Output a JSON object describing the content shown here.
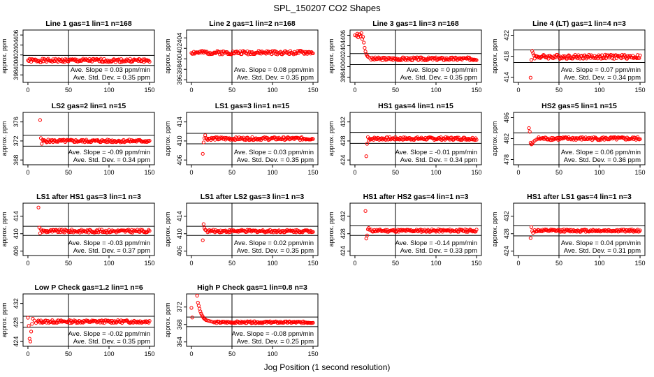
{
  "figure": {
    "title": "SPL_150207  CO2 Shapes",
    "xlabel": "Jog Position (1 second resolution)"
  },
  "chart_data": [
    {
      "type": "scatter",
      "title": "Line 1 gas=1 lin=1 n=168",
      "ylabel": "approx. ppm",
      "xlim": [
        0,
        150
      ],
      "ylim": [
        396.5,
        407
      ],
      "yticks": [
        398,
        400,
        402,
        404,
        406
      ],
      "xticks": [
        0,
        50,
        100,
        150
      ],
      "vline": 50,
      "hlines": [
        401.9,
        399.9
      ],
      "color": "#ff0000",
      "annotations": [
        "Ave. Slope =  0.03  ppm/min",
        "Ave. Std. Dev. =  0.35  ppm"
      ],
      "points": {
        "x_start": 0,
        "x_end": 150,
        "base": 400.9,
        "amp": 0.35,
        "seed": 1,
        "head": []
      }
    },
    {
      "type": "scatter",
      "title": "Line 2 gas=1 lin=2 n=168",
      "ylabel": "approx. ppm",
      "xlim": [
        0,
        150
      ],
      "ylim": [
        395.5,
        405.5
      ],
      "yticks": [
        396,
        398,
        400,
        402,
        404
      ],
      "xticks": [
        0,
        50,
        100,
        150
      ],
      "vline": 50,
      "hlines": [],
      "color": "#ff0000",
      "annotations": [
        "Ave. Slope =  0.08  ppm/min",
        "Ave. Std. Dev. =  0.35  ppm"
      ],
      "points": {
        "x_start": 0,
        "x_end": 150,
        "base": 401.2,
        "amp": 0.35,
        "seed": 2,
        "head": []
      }
    },
    {
      "type": "scatter",
      "title": "Line 3 gas=1 lin=3 n=168",
      "ylabel": "approx. ppm",
      "xlim": [
        0,
        150
      ],
      "ylim": [
        397,
        407
      ],
      "yticks": [
        398,
        400,
        402,
        404,
        406
      ],
      "xticks": [
        0,
        50,
        100,
        150
      ],
      "vline": 50,
      "hlines": [
        402.5,
        400.4
      ],
      "color": "#ff0000",
      "annotations": [
        "Ave. Slope =  0  ppm/min",
        "Ave. Std. Dev. =  0.35  ppm"
      ],
      "points": {
        "x_start": 20,
        "x_end": 150,
        "base": 401.5,
        "amp": 0.3,
        "seed": 3,
        "head": [
          [
            0,
            406.0
          ],
          [
            2,
            405.9
          ],
          [
            3,
            406.3
          ],
          [
            4,
            405.6
          ],
          [
            5,
            406.1
          ],
          [
            6,
            406.2
          ],
          [
            7,
            405.8
          ],
          [
            8,
            406.4
          ],
          [
            9,
            405.3
          ],
          [
            10,
            405.7
          ],
          [
            11,
            404.6
          ],
          [
            12,
            403.6
          ],
          [
            13,
            402.9
          ],
          [
            14,
            402.4
          ],
          [
            15,
            402.1
          ],
          [
            16,
            401.9
          ],
          [
            18,
            401.7
          ]
        ]
      }
    },
    {
      "type": "scatter",
      "title": "Line 4 (LT) gas=1 lin=4 n=3",
      "ylabel": "approx. ppm",
      "xlim": [
        0,
        150
      ],
      "ylim": [
        413,
        423
      ],
      "yticks": [
        414,
        418,
        422
      ],
      "xticks": [
        0,
        50,
        100,
        150
      ],
      "vline": 50,
      "hlines": [
        419.2,
        416.8
      ],
      "color": "#ff0000",
      "annotations": [
        "Ave. Slope =  0.07  ppm/min",
        "Ave. Std. Dev. =  0.34  ppm"
      ],
      "points": {
        "x_start": 20,
        "x_end": 150,
        "base": 417.9,
        "amp": 0.4,
        "seed": 4,
        "head": [
          [
            15,
            413.9
          ],
          [
            16,
            417.3
          ],
          [
            17,
            419.0
          ],
          [
            18,
            418.6
          ],
          [
            19,
            418.2
          ]
        ]
      }
    },
    {
      "type": "scatter",
      "title": "LS2 gas=2 lin=1 n=15",
      "ylabel": "approx. ppm",
      "xlim": [
        0,
        150
      ],
      "ylim": [
        367,
        378
      ],
      "yticks": [
        368,
        372,
        376
      ],
      "xticks": [
        0,
        50,
        100,
        150
      ],
      "vline": 50,
      "hlines": [
        373.2,
        370.9
      ],
      "color": "#ff0000",
      "annotations": [
        "Ave. Slope =  -0.09  ppm/min",
        "Ave. Std. Dev. =  0.34  ppm"
      ],
      "points": {
        "x_start": 18,
        "x_end": 150,
        "base": 372.0,
        "amp": 0.3,
        "seed": 5,
        "head": [
          [
            15,
            376.4
          ],
          [
            16,
            372.6
          ],
          [
            17,
            371.4
          ]
        ]
      }
    },
    {
      "type": "scatter",
      "title": "LS1 gas=3 lin=1 n=15",
      "ylabel": "approx. ppm",
      "xlim": [
        0,
        150
      ],
      "ylim": [
        405,
        416
      ],
      "yticks": [
        406,
        410,
        414
      ],
      "xticks": [
        0,
        50,
        100,
        150
      ],
      "vline": 50,
      "hlines": [
        411.6,
        409.4
      ],
      "color": "#ff0000",
      "annotations": [
        "Ave. Slope =  0.03  ppm/min",
        "Ave. Std. Dev. =  0.35  ppm"
      ],
      "points": {
        "x_start": 18,
        "x_end": 150,
        "base": 410.5,
        "amp": 0.3,
        "seed": 6,
        "head": [
          [
            14,
            407.3
          ],
          [
            15,
            409.7
          ],
          [
            16,
            410.6
          ],
          [
            17,
            411.2
          ]
        ]
      }
    },
    {
      "type": "scatter",
      "title": "HS1 gas=4 lin=1 n=15",
      "ylabel": "approx. ppm",
      "xlim": [
        0,
        150
      ],
      "ylim": [
        423,
        434
      ],
      "yticks": [
        424,
        428,
        432
      ],
      "xticks": [
        0,
        50,
        100,
        150
      ],
      "vline": 50,
      "hlines": [
        429.8,
        427.5
      ],
      "color": "#ff0000",
      "annotations": [
        "Ave. Slope =  -0.01  ppm/min",
        "Ave. Std. Dev. =  0.34  ppm"
      ],
      "points": {
        "x_start": 18,
        "x_end": 150,
        "base": 428.5,
        "amp": 0.3,
        "seed": 7,
        "head": [
          [
            14,
            424.8
          ],
          [
            15,
            427.4
          ],
          [
            16,
            428.8
          ],
          [
            17,
            428.1
          ]
        ]
      }
    },
    {
      "type": "scatter",
      "title": "HS2 gas=5 lin=1 n=15",
      "ylabel": "approx. ppm",
      "xlim": [
        0,
        150
      ],
      "ylim": [
        477,
        487
      ],
      "yticks": [
        478,
        482,
        486
      ],
      "xticks": [
        0,
        50,
        100,
        150
      ],
      "vline": 50,
      "hlines": [
        483.1,
        480.8
      ],
      "color": "#ff0000",
      "annotations": [
        "Ave. Slope =  0.06  ppm/min",
        "Ave. Std. Dev. =  0.36  ppm"
      ],
      "points": {
        "x_start": 24,
        "x_end": 150,
        "base": 482.0,
        "amp": 0.3,
        "seed": 8,
        "head": [
          [
            13,
            484.0
          ],
          [
            14,
            483.3
          ],
          [
            15,
            481.2
          ],
          [
            16,
            480.9
          ],
          [
            17,
            481.0
          ],
          [
            18,
            481.3
          ],
          [
            20,
            481.6
          ],
          [
            22,
            481.8
          ]
        ]
      }
    },
    {
      "type": "scatter",
      "title": "LS1 after HS1 gas=3 lin=1 n=3",
      "ylabel": "approx. ppm",
      "xlim": [
        0,
        150
      ],
      "ylim": [
        405,
        417
      ],
      "yticks": [
        406,
        410,
        414
      ],
      "xticks": [
        0,
        50,
        100,
        150
      ],
      "vline": 50,
      "hlines": [
        411.7,
        409.6
      ],
      "color": "#ff0000",
      "annotations": [
        "Ave. Slope =  -0.03  ppm/min",
        "Ave. Std. Dev. =  0.37  ppm"
      ],
      "points": {
        "x_start": 18,
        "x_end": 150,
        "base": 410.6,
        "amp": 0.35,
        "seed": 9,
        "head": [
          [
            13,
            416.0
          ],
          [
            14,
            411.4
          ],
          [
            15,
            410.1
          ],
          [
            16,
            411.0
          ],
          [
            17,
            410.7
          ]
        ]
      }
    },
    {
      "type": "scatter",
      "title": "LS1 after LS2 gas=3 lin=1 n=3",
      "ylabel": "approx. ppm",
      "xlim": [
        0,
        150
      ],
      "ylim": [
        405,
        417
      ],
      "yticks": [
        406,
        410,
        414
      ],
      "xticks": [
        0,
        50,
        100,
        150
      ],
      "vline": 50,
      "hlines": [
        411.7,
        409.6
      ],
      "color": "#ff0000",
      "annotations": [
        "Ave. Slope =  0.02  ppm/min",
        "Ave. Std. Dev. =  0.35  ppm"
      ],
      "points": {
        "x_start": 20,
        "x_end": 150,
        "base": 410.6,
        "amp": 0.3,
        "seed": 10,
        "head": [
          [
            14,
            408.5
          ],
          [
            15,
            412.2
          ],
          [
            16,
            411.3
          ],
          [
            17,
            410.9
          ],
          [
            18,
            410.8
          ]
        ]
      }
    },
    {
      "type": "scatter",
      "title": "HS1 after HS2 gas=4 lin=1 n=3",
      "ylabel": "approx. ppm",
      "xlim": [
        0,
        150
      ],
      "ylim": [
        423,
        435
      ],
      "yticks": [
        424,
        428,
        432
      ],
      "xticks": [
        0,
        50,
        100,
        150
      ],
      "vline": 50,
      "hlines": [
        429.8,
        427.6
      ],
      "color": "#ff0000",
      "annotations": [
        "Ave. Slope =  -0.14  ppm/min",
        "Ave. Std. Dev. =  0.33  ppm"
      ],
      "points": {
        "x_start": 20,
        "x_end": 150,
        "base": 428.7,
        "amp": 0.3,
        "seed": 11,
        "head": [
          [
            13,
            433.2
          ],
          [
            14,
            426.9
          ],
          [
            15,
            427.6
          ],
          [
            16,
            429.0
          ],
          [
            17,
            429.3
          ],
          [
            18,
            428.9
          ]
        ]
      }
    },
    {
      "type": "scatter",
      "title": "HS1 after LS1 gas=4 lin=1 n=3",
      "ylabel": "approx. ppm",
      "xlim": [
        0,
        150
      ],
      "ylim": [
        423,
        435
      ],
      "yticks": [
        424,
        428,
        432
      ],
      "xticks": [
        0,
        50,
        100,
        150
      ],
      "vline": 50,
      "hlines": [
        429.8,
        427.5
      ],
      "color": "#ff0000",
      "annotations": [
        "Ave. Slope =  0.04  ppm/min",
        "Ave. Std. Dev. =  0.31  ppm"
      ],
      "points": {
        "x_start": 20,
        "x_end": 150,
        "base": 428.7,
        "amp": 0.28,
        "seed": 12,
        "head": [
          [
            15,
            427.0
          ],
          [
            16,
            429.5
          ],
          [
            17,
            428.6
          ],
          [
            18,
            428.2
          ]
        ]
      }
    },
    {
      "type": "scatter",
      "title": "Low P Check gas=1.2 lin=1 n=6",
      "ylabel": "approx. ppm",
      "xlim": [
        0,
        150
      ],
      "ylim": [
        423,
        434
      ],
      "yticks": [
        424,
        428,
        432
      ],
      "xticks": [
        0,
        50,
        100,
        150
      ],
      "vline": 50,
      "hlines": [
        429.3,
        427.0
      ],
      "color": "#ff0000",
      "annotations": [
        "Ave. Slope =  -0.02  ppm/min",
        "Ave. Std. Dev. =  0.35  ppm"
      ],
      "points": {
        "x_start": 12,
        "x_end": 150,
        "base": 428.2,
        "amp": 0.3,
        "seed": 13,
        "head": [
          [
            0,
            429.0
          ],
          [
            1,
            427.3
          ],
          [
            2,
            424.6
          ],
          [
            3,
            424.0
          ],
          [
            4,
            426.1
          ],
          [
            5,
            427.7
          ],
          [
            6,
            428.8
          ],
          [
            8,
            428.4
          ],
          [
            10,
            427.9
          ]
        ]
      }
    },
    {
      "type": "scatter",
      "title": "High P Check gas=1 lin=0.8 n=3",
      "ylabel": "approx. ppm",
      "xlim": [
        0,
        150
      ],
      "ylim": [
        363,
        375
      ],
      "yticks": [
        364,
        368,
        372
      ],
      "xticks": [
        0,
        50,
        100,
        150
      ],
      "vline": 50,
      "hlines": [
        369.7,
        367.5
      ],
      "color": "#ff0000",
      "annotations": [
        "Ave. Slope =  -0.08  ppm/min",
        "Ave. Std. Dev. =  0.25  ppm"
      ],
      "points": {
        "x_start": 28,
        "x_end": 150,
        "base": 368.5,
        "amp": 0.22,
        "seed": 14,
        "head": [
          [
            0,
            371.8
          ],
          [
            1,
            369.6
          ],
          [
            7,
            374.6
          ],
          [
            8,
            373.0
          ],
          [
            9,
            372.3
          ],
          [
            10,
            371.6
          ],
          [
            11,
            371.0
          ],
          [
            12,
            370.5
          ],
          [
            13,
            370.1
          ],
          [
            14,
            369.8
          ],
          [
            15,
            369.5
          ],
          [
            16,
            369.3
          ],
          [
            17,
            369.2
          ],
          [
            18,
            369.0
          ],
          [
            20,
            368.9
          ],
          [
            22,
            368.8
          ],
          [
            24,
            368.7
          ],
          [
            26,
            368.6
          ]
        ]
      }
    }
  ]
}
